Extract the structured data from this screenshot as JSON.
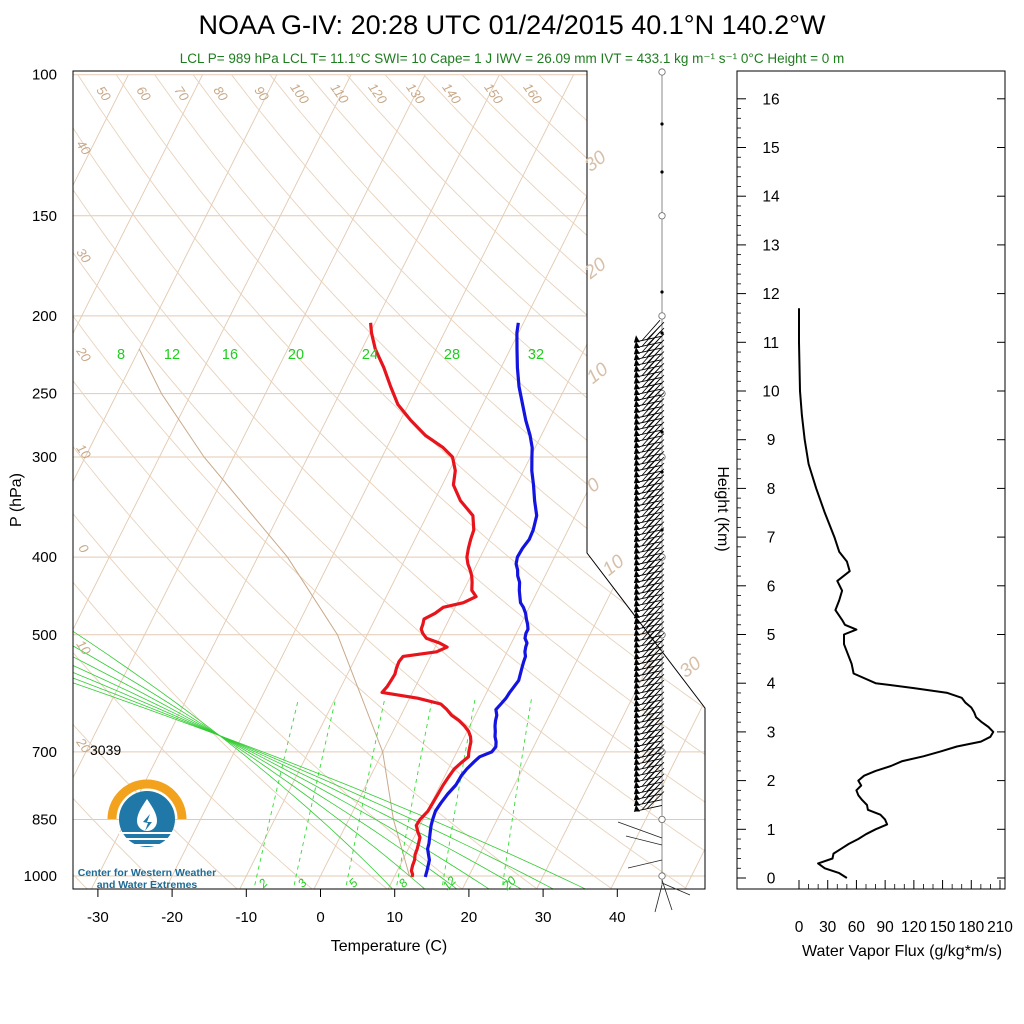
{
  "title": "NOAA G-IV: 20:28 UTC 01/24/2015  40.1°N 140.2°W",
  "subtitle": "LCL P= 989 hPa  LCL T= 11.1°C  SWI= 10  Cape= 1 J  IWV = 26.09 mm  IVT = 433.1 kg m⁻¹ s⁻¹  0°C Height = 0 m",
  "annotation": "3039",
  "logo_text": [
    "Center for Western Weather",
    "and Water Extremes"
  ],
  "colors": {
    "temperature": "#e8141c",
    "dewpoint": "#1414e0",
    "isotherm": "#e3c9b0",
    "dry_adiabat": "#e8d2bc",
    "mixing_ratio": "#33dd33",
    "moist_adiabat": "#33cc33",
    "vapor_flux": "#000000",
    "logo_orange": "#f3a21d",
    "logo_blue": "#1f78a8"
  },
  "chart_data": [
    {
      "type": "line",
      "subtype": "skew-T log-p",
      "xlabel": "Temperature (C)",
      "ylabel": "P (hPa)",
      "x_ticks": [
        -30,
        -20,
        -10,
        0,
        10,
        20,
        30,
        40
      ],
      "y_ticks": [
        100,
        150,
        200,
        250,
        300,
        400,
        500,
        700,
        850,
        1000
      ],
      "xlim": [
        -34,
        54
      ],
      "ylim": [
        1050,
        100
      ],
      "y_scale": "log",
      "grid": true,
      "isotherm_labels": [
        "50",
        "60",
        "70",
        "80",
        "90",
        "100",
        "110",
        "120",
        "130",
        "140",
        "150",
        "160",
        "40",
        "30",
        "20",
        "10",
        "0",
        "10",
        "20"
      ],
      "diagonal_labels": [
        "30",
        "20",
        "10",
        "0",
        "10",
        "30"
      ],
      "mixing_ratio_labels": [
        "8",
        "12",
        "16",
        "20",
        "24",
        "28",
        "32"
      ],
      "mixing_ratio_labels_bottom": [
        "2",
        "3",
        "5",
        "8",
        "12",
        "20"
      ],
      "series": [
        {
          "name": "Temperature",
          "p": [
            204,
            210,
            220,
            232,
            245,
            258,
            270,
            282,
            292,
            300,
            312,
            325,
            340,
            355,
            370,
            380,
            390,
            400,
            408,
            415,
            422,
            430,
            440,
            448,
            456,
            462,
            470,
            478,
            485,
            492,
            498,
            505,
            512,
            518,
            525,
            532,
            540,
            550,
            560,
            570,
            580,
            590,
            600,
            610,
            620,
            630,
            640,
            650,
            660,
            670,
            680,
            690,
            700,
            710,
            720,
            735,
            750,
            770,
            790,
            810,
            830,
            850,
            865,
            880,
            895,
            910,
            925,
            940,
            955,
            970,
            985,
            995,
            1003
          ],
          "t": [
            -30.6,
            -29.8,
            -28.2,
            -25.8,
            -23.6,
            -21.4,
            -18.6,
            -15.6,
            -12.4,
            -10.5,
            -9.2,
            -8.5,
            -6.5,
            -3.8,
            -2.7,
            -2.5,
            -2.2,
            -1.8,
            -1.2,
            -0.5,
            0.1,
            0.6,
            1.1,
            2.1,
            0.8,
            -1.6,
            -2.3,
            -3.4,
            -3.2,
            -3.1,
            -2.6,
            -1.8,
            0.3,
            1.6,
            0.5,
            -3.7,
            -3.9,
            -3.8,
            -3.6,
            -3.7,
            -3.8,
            -4.1,
            1.1,
            4.6,
            5.8,
            6.8,
            8.2,
            9.3,
            10.2,
            10.8,
            11.2,
            11.4,
            11.6,
            11.9,
            11.4,
            10.8,
            10.6,
            10.4,
            10.3,
            10.2,
            10.1,
            9.6,
            9.5,
            10.1,
            10.8,
            11.0,
            11.2,
            11.3,
            11.6,
            11.7,
            11.9,
            12.3,
            12.4
          ]
        },
        {
          "name": "Dewpoint",
          "p": [
            204,
            210,
            220,
            232,
            245,
            258,
            270,
            282,
            292,
            300,
            312,
            325,
            340,
            355,
            370,
            380,
            390,
            400,
            408,
            415,
            422,
            430,
            440,
            448,
            456,
            462,
            470,
            478,
            485,
            492,
            498,
            505,
            512,
            518,
            525,
            532,
            540,
            550,
            560,
            570,
            580,
            590,
            600,
            610,
            620,
            630,
            640,
            650,
            660,
            670,
            680,
            690,
            700,
            710,
            720,
            735,
            750,
            770,
            790,
            810,
            830,
            850,
            865,
            880,
            895,
            910,
            925,
            940,
            955,
            970,
            985,
            995,
            1003
          ],
          "t": [
            -10.7,
            -10.2,
            -9.1,
            -7.8,
            -6.3,
            -4.6,
            -3.1,
            -1.5,
            -0.4,
            0.2,
            1.1,
            2.3,
            3.5,
            4.8,
            5.3,
            5.4,
            5.1,
            5.0,
            5.3,
            5.9,
            6.3,
            7.0,
            7.5,
            8.0,
            8.5,
            9.2,
            9.9,
            10.4,
            10.9,
            11.3,
            11.3,
            11.5,
            12.1,
            12.2,
            12.4,
            12.8,
            12.9,
            13.1,
            13.3,
            13.5,
            13.3,
            13.1,
            13.0,
            12.7,
            12.4,
            12.9,
            13.1,
            13.4,
            13.8,
            14.1,
            14.6,
            14.9,
            14.7,
            13.4,
            13.0,
            12.5,
            12.2,
            12.1,
            11.6,
            11.3,
            11.1,
            11.3,
            11.5,
            11.8,
            12.1,
            12.4,
            12.6,
            13.1,
            13.6,
            13.8,
            14.0,
            14.1,
            14.2
          ]
        }
      ]
    },
    {
      "type": "line",
      "xlabel": "Water Vapor Flux (g/kg*m/s)",
      "ylabel": "Height (Km)",
      "x_ticks": [
        0,
        30,
        60,
        90,
        120,
        150,
        180,
        210
      ],
      "y_ticks": [
        0,
        1,
        2,
        3,
        4,
        5,
        6,
        7,
        8,
        9,
        10,
        11,
        12,
        13,
        14,
        15,
        16
      ],
      "xlim": [
        0,
        210
      ],
      "ylim": [
        -0.3,
        16.5
      ],
      "series": [
        {
          "name": "Water Vapor Flux",
          "h": [
            0.0,
            0.1,
            0.2,
            0.3,
            0.4,
            0.5,
            0.6,
            0.7,
            0.8,
            0.9,
            1.0,
            1.1,
            1.2,
            1.3,
            1.4,
            1.5,
            1.6,
            1.7,
            1.8,
            1.9,
            2.0,
            2.1,
            2.2,
            2.3,
            2.4,
            2.5,
            2.6,
            2.7,
            2.8,
            2.9,
            3.0,
            3.1,
            3.2,
            3.3,
            3.4,
            3.5,
            3.6,
            3.7,
            3.8,
            3.9,
            4.0,
            4.2,
            4.4,
            4.6,
            4.8,
            5.0,
            5.1,
            5.2,
            5.3,
            5.5,
            5.7,
            5.9,
            6.1,
            6.3,
            6.5,
            6.7,
            7.0,
            7.5,
            8.0,
            8.5,
            9.0,
            9.5,
            10.0,
            10.5,
            11.0,
            11.5,
            11.7
          ],
          "flux": [
            50,
            42,
            27,
            20,
            35,
            36,
            44,
            52,
            62,
            70,
            80,
            92,
            90,
            85,
            72,
            71,
            66,
            62,
            60,
            65,
            62,
            68,
            80,
            96,
            108,
            130,
            148,
            165,
            190,
            200,
            203,
            198,
            191,
            185,
            183,
            180,
            174,
            170,
            155,
            120,
            80,
            57,
            55,
            51,
            47,
            47,
            60,
            48,
            45,
            38,
            42,
            45,
            40,
            53,
            50,
            42,
            37,
            27,
            18,
            10,
            6,
            3,
            1,
            0.5,
            0,
            0,
            0
          ]
        }
      ]
    }
  ]
}
